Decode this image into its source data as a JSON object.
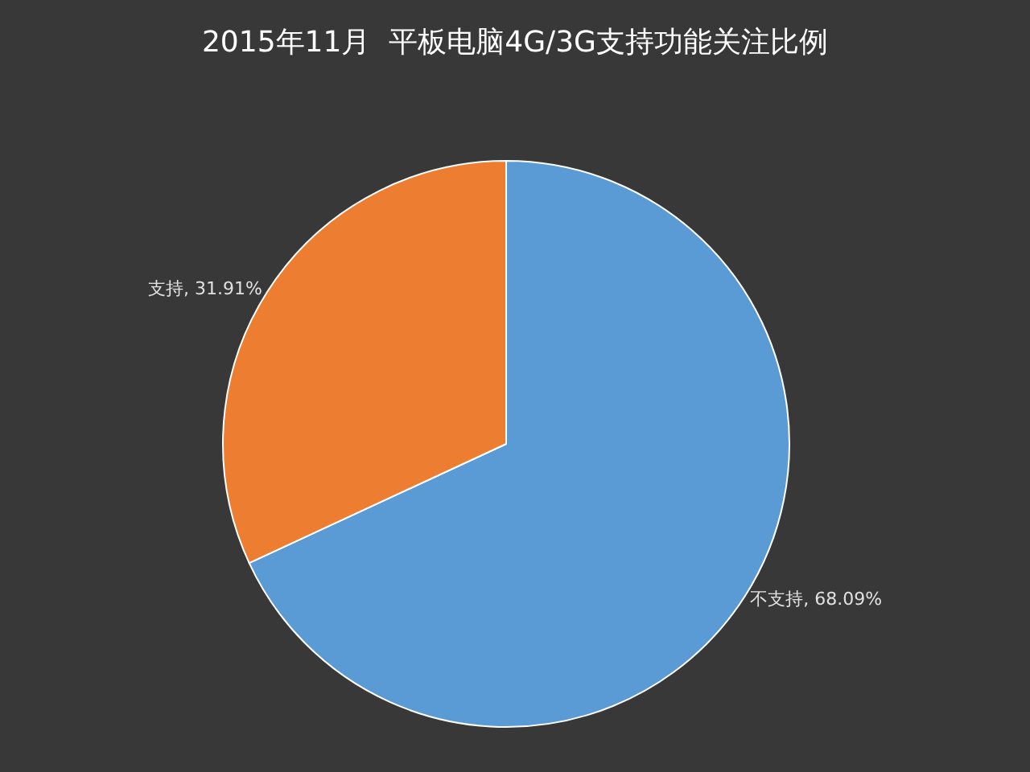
{
  "chart_data": {
    "type": "pie",
    "title": "2015年11月  平板电脑4G/3G支持功能关注比例",
    "categories": [
      "不支持",
      "支持"
    ],
    "values": [
      68.09,
      31.91
    ],
    "value_labels": [
      "68.09%",
      "31.91%"
    ],
    "colors": [
      "#5b9bd5",
      "#ed7d31"
    ]
  }
}
